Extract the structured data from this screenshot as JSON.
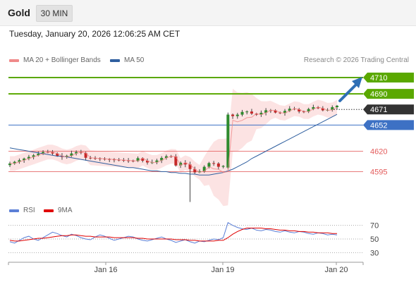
{
  "header": {
    "title": "Gold",
    "timeframe": "30 MIN"
  },
  "timestamp": "Tuesday, January 20, 2026 12:06:25 AM CET",
  "legend": {
    "ma20_label": "MA 20 + Bollinger Bands",
    "ma50_label": "MA 50",
    "copyright": "Research © 2026 Trading Central",
    "rsi_label": "RSI",
    "rsi_ma_label": "9MA"
  },
  "colors": {
    "green": "#5aa800",
    "blue": "#3d71c4",
    "red": "#e35a5a",
    "candle_up": "#2e8b2e",
    "candle_down": "#c62828",
    "current": "#333333",
    "bb_fill": "#fcdede",
    "rsi": "#5b7fd6",
    "rsi_ma": "#e00000",
    "arrow": "#2f6fb5"
  },
  "chart_data": [
    {
      "type": "candlestick",
      "title": "Gold",
      "ylim": [
        4555,
        4722
      ],
      "x_ticks": [
        "Jan 16",
        "Jan 19",
        "Jan 20"
      ],
      "current_price": 4671,
      "levels": [
        {
          "value": 4710,
          "label": "4710",
          "kind": "resistance"
        },
        {
          "value": 4690,
          "label": "4690",
          "kind": "resistance"
        },
        {
          "value": 4671,
          "label": "4671",
          "kind": "current"
        },
        {
          "value": 4652,
          "label": "4652",
          "kind": "pivot"
        },
        {
          "value": 4620,
          "label": "4620",
          "kind": "support"
        },
        {
          "value": 4595,
          "label": "4595",
          "kind": "support"
        }
      ],
      "ma50": [
        4624,
        4623,
        4622,
        4621,
        4620,
        4619,
        4618,
        4617,
        4616,
        4615,
        4614,
        4614,
        4613,
        4612,
        4611,
        4610,
        4609,
        4608,
        4607,
        4606,
        4605,
        4604,
        4603,
        4602,
        4601,
        4600,
        4600,
        4599,
        4598,
        4597,
        4596,
        4596,
        4595,
        4595,
        4594,
        4594,
        4593,
        4593,
        4592,
        4592,
        4591,
        4591,
        4591,
        4592,
        4593,
        4594,
        4596,
        4598,
        4601,
        4604,
        4607,
        4611,
        4614,
        4617,
        4620,
        4623,
        4626,
        4629,
        4632,
        4635,
        4638,
        4641,
        4644,
        4647,
        4650,
        4653,
        4656,
        4659,
        4662,
        4665
      ],
      "rsi_ylim": [
        20,
        80
      ],
      "rsi_levels": [
        70,
        50,
        30
      ],
      "rsi": [
        46,
        44,
        48,
        52,
        54,
        50,
        48,
        52,
        56,
        60,
        58,
        55,
        53,
        57,
        55,
        52,
        50,
        49,
        53,
        56,
        54,
        51,
        48,
        50,
        52,
        54,
        53,
        50,
        48,
        47,
        49,
        51,
        53,
        50,
        48,
        45,
        47,
        49,
        46,
        44,
        47,
        46,
        48,
        50,
        49,
        52,
        74,
        70,
        67,
        65,
        64,
        66,
        63,
        62,
        64,
        63,
        61,
        60,
        62,
        60,
        59,
        61,
        60,
        58,
        57,
        59,
        58,
        56,
        57,
        56
      ],
      "rsi_ma": [
        48,
        47,
        47,
        48,
        49,
        50,
        51,
        51,
        52,
        53,
        54,
        55,
        55,
        56,
        56,
        55,
        54,
        54,
        53,
        53,
        53,
        53,
        52,
        52,
        52,
        52,
        52,
        51,
        51,
        50,
        50,
        50,
        50,
        50,
        50,
        49,
        49,
        49,
        48,
        48,
        47,
        47,
        47,
        47,
        48,
        48,
        52,
        57,
        61,
        64,
        66,
        66,
        66,
        66,
        65,
        65,
        64,
        63,
        63,
        62,
        62,
        61,
        61,
        60,
        60,
        59,
        59,
        59,
        58,
        58
      ]
    }
  ]
}
